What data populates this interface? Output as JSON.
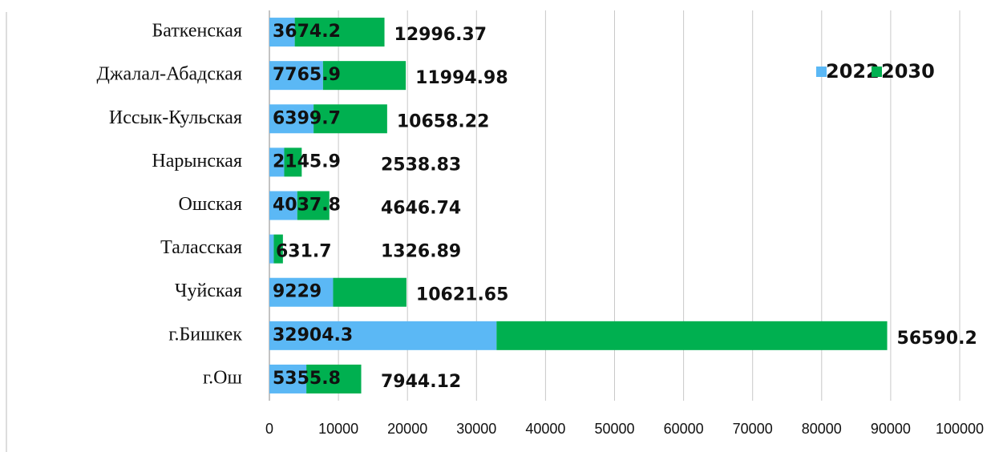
{
  "chart_data": {
    "type": "stacked_bar_horizontal",
    "categories": [
      "Баткенская",
      "Джалал-Абадская",
      "Иссык-Кульская",
      "Нарынская",
      "Ошская",
      "Таласская",
      "Чуйская",
      "г.Бишкек",
      "г.Ош"
    ],
    "series": [
      {
        "name": "2022",
        "color": "#5bb8f5",
        "values": [
          3674.2,
          7765.9,
          6399.7,
          2145.9,
          4037.8,
          631.7,
          9229,
          32904.3,
          5355.8
        ]
      },
      {
        "name": "2030",
        "color": "#00b050",
        "values": [
          12996.37,
          11994.98,
          10658.22,
          2538.83,
          4646.74,
          1326.89,
          10621.65,
          56590.2,
          7944.12
        ]
      }
    ],
    "xlim": [
      0,
      100000
    ],
    "xticks": [
      0,
      10000,
      20000,
      30000,
      40000,
      50000,
      60000,
      70000,
      80000,
      90000,
      100000
    ],
    "grid": true,
    "legend": "top-right"
  }
}
